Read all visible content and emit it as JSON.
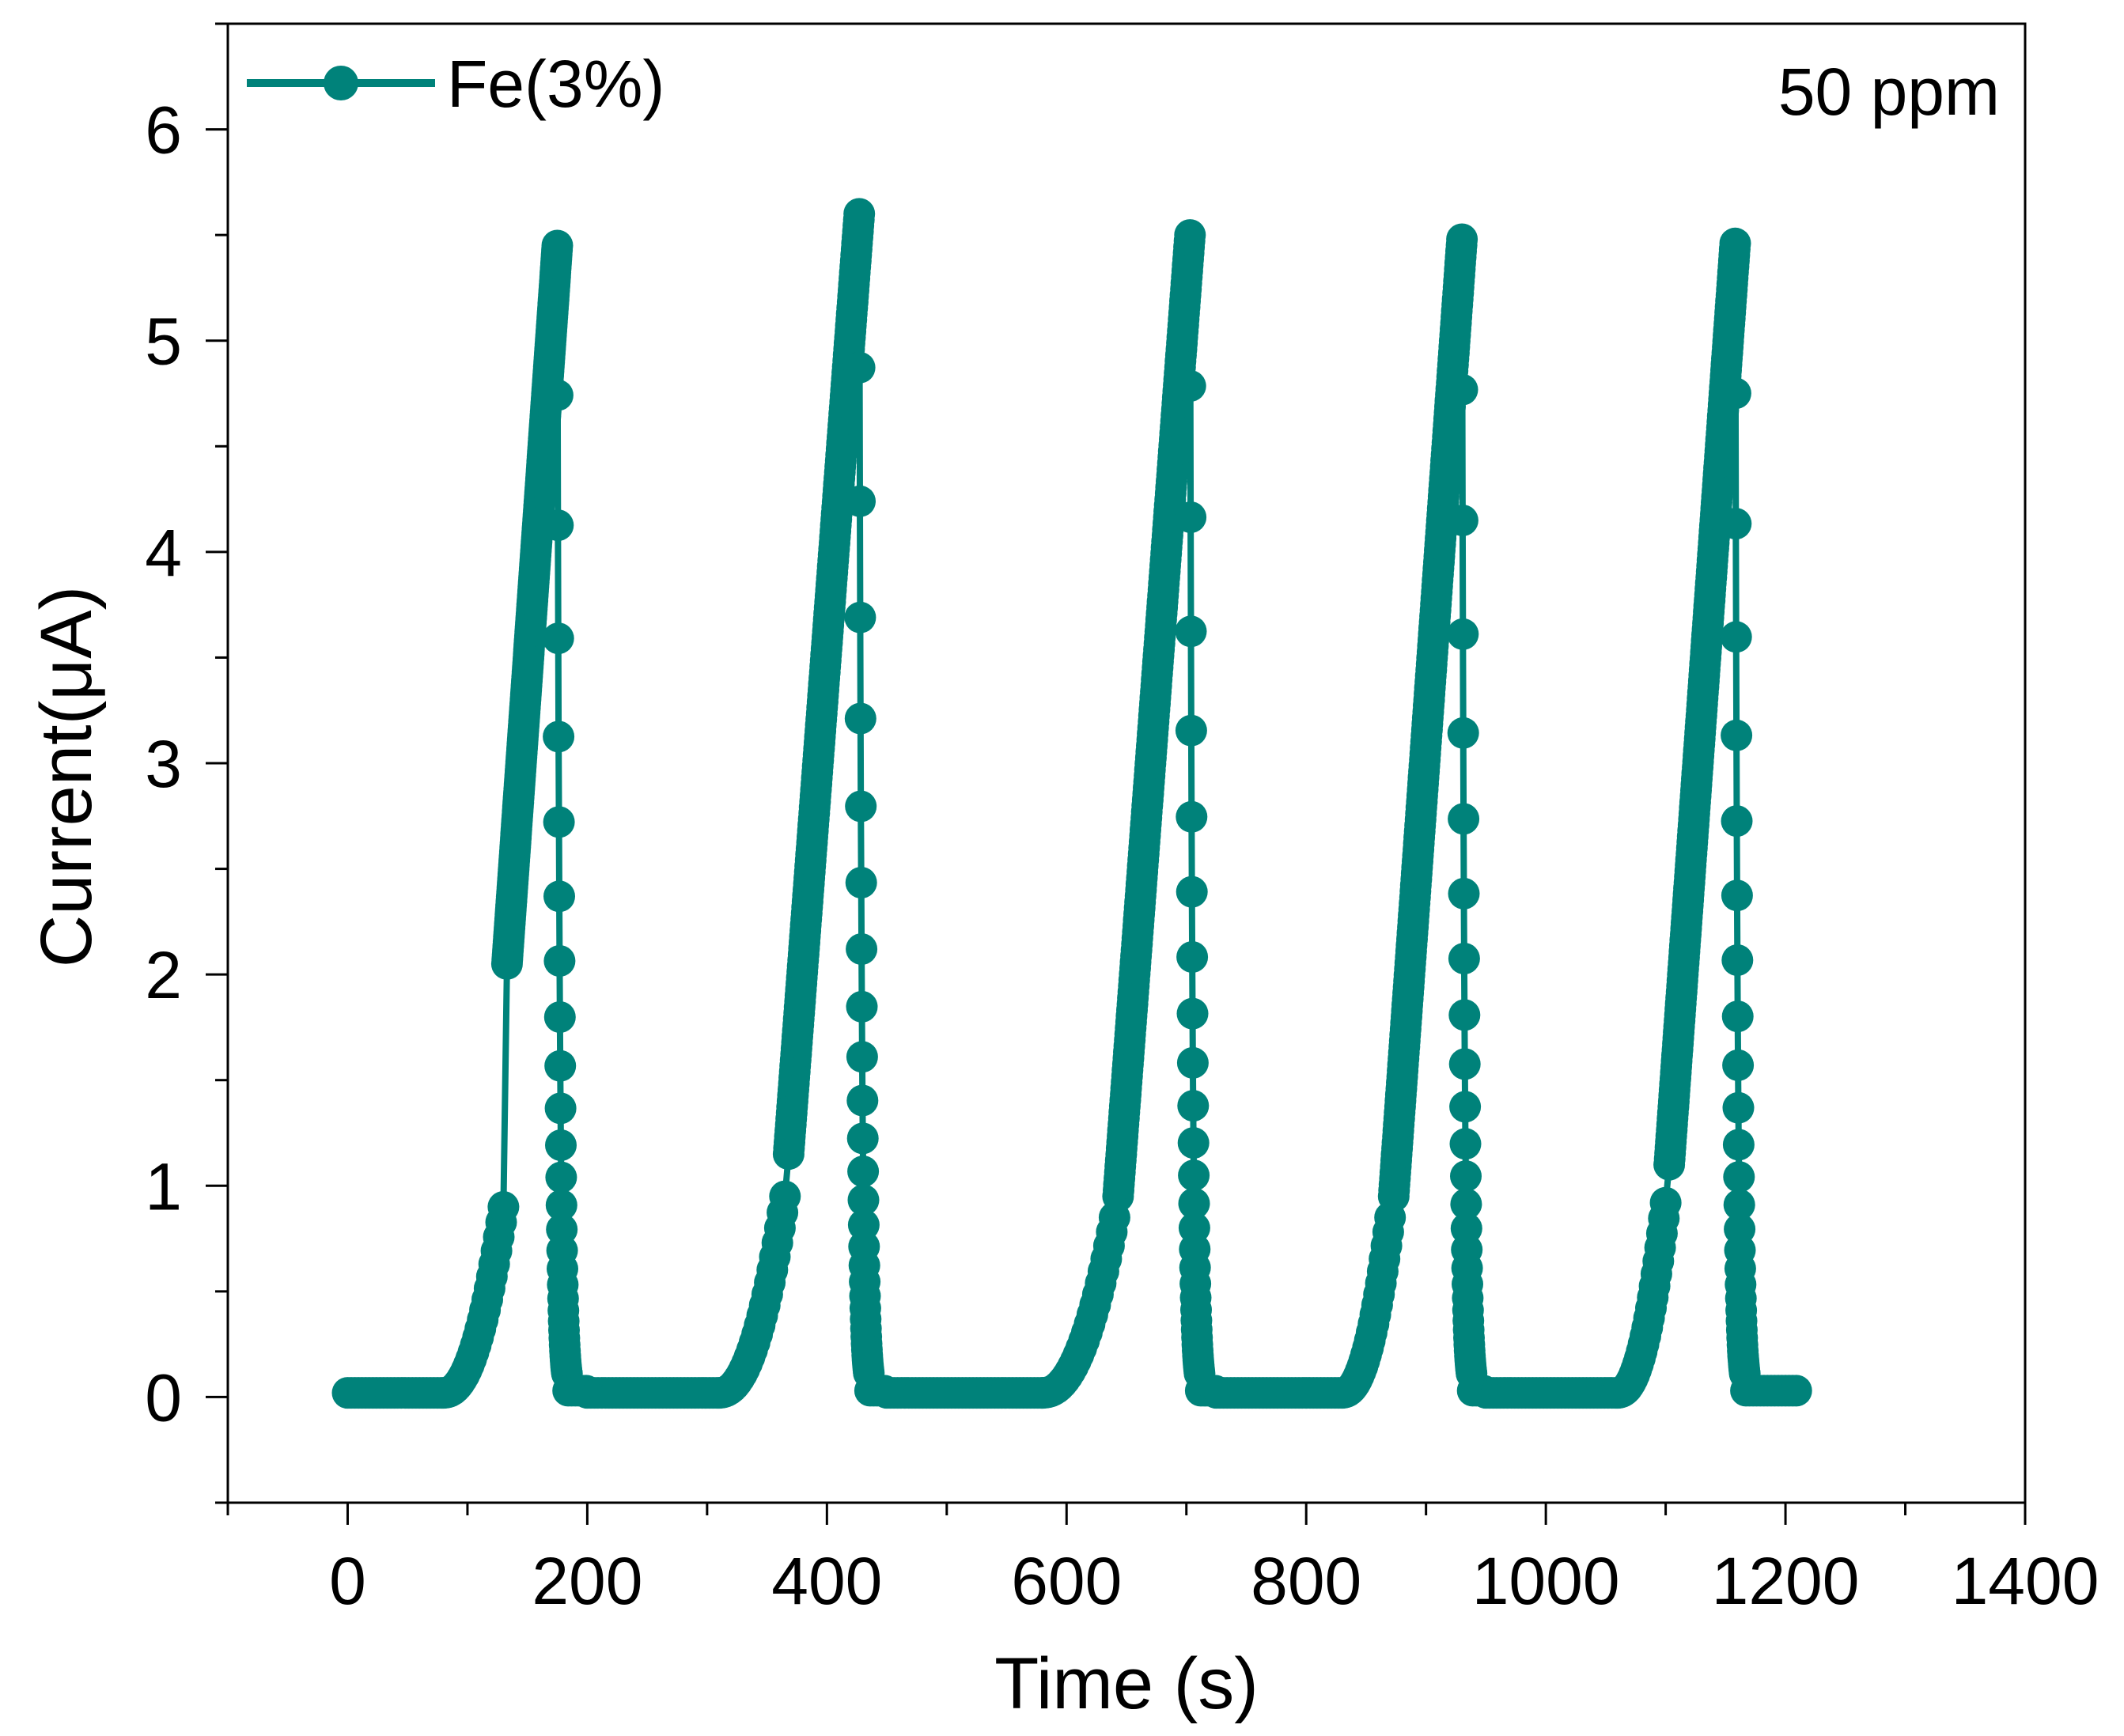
{
  "chart_data": {
    "type": "scatter",
    "title": "",
    "xlabel": "Time (s)",
    "ylabel": "Current(μA)",
    "xlim": [
      -100,
      1400
    ],
    "ylim": [
      -0.5,
      6.5
    ],
    "xticks": [
      0,
      200,
      400,
      600,
      800,
      1000,
      1200,
      1400
    ],
    "yticks": [
      0,
      1,
      2,
      3,
      4,
      5,
      6
    ],
    "xtick_labels": [
      "0",
      "200",
      "400",
      "600",
      "800",
      "1000",
      "1200",
      "1400"
    ],
    "ytick_labels": [
      "0",
      "1",
      "2",
      "3",
      "4",
      "5",
      "6"
    ],
    "annotation": "50 ppm",
    "legend": {
      "position": "top-left"
    },
    "series": [
      {
        "name": "Fe(3%)",
        "color": "#00827a",
        "marker": "circle",
        "cycles": [
          {
            "baseline_start": 0,
            "rise_start": 80,
            "knee_x": 130,
            "knee_y": 0.9,
            "jump_y": 2.05,
            "peak_x": 175,
            "peak_y": 5.45,
            "end_x": 200
          },
          {
            "baseline_start": 200,
            "rise_start": 310,
            "knee_x": 365,
            "knee_y": 0.95,
            "jump_y": 1.15,
            "peak_x": 427,
            "peak_y": 5.6,
            "end_x": 450
          },
          {
            "baseline_start": 450,
            "rise_start": 580,
            "knee_x": 640,
            "knee_y": 0.85,
            "jump_y": 0.95,
            "peak_x": 703,
            "peak_y": 5.5,
            "end_x": 725
          },
          {
            "baseline_start": 725,
            "rise_start": 830,
            "knee_x": 870,
            "knee_y": 0.85,
            "jump_y": 0.95,
            "peak_x": 930,
            "peak_y": 5.48,
            "end_x": 950
          },
          {
            "baseline_start": 950,
            "rise_start": 1060,
            "knee_x": 1100,
            "knee_y": 0.92,
            "jump_y": 1.1,
            "peak_x": 1158,
            "peak_y": 5.46,
            "end_x": 1210
          }
        ]
      }
    ]
  }
}
